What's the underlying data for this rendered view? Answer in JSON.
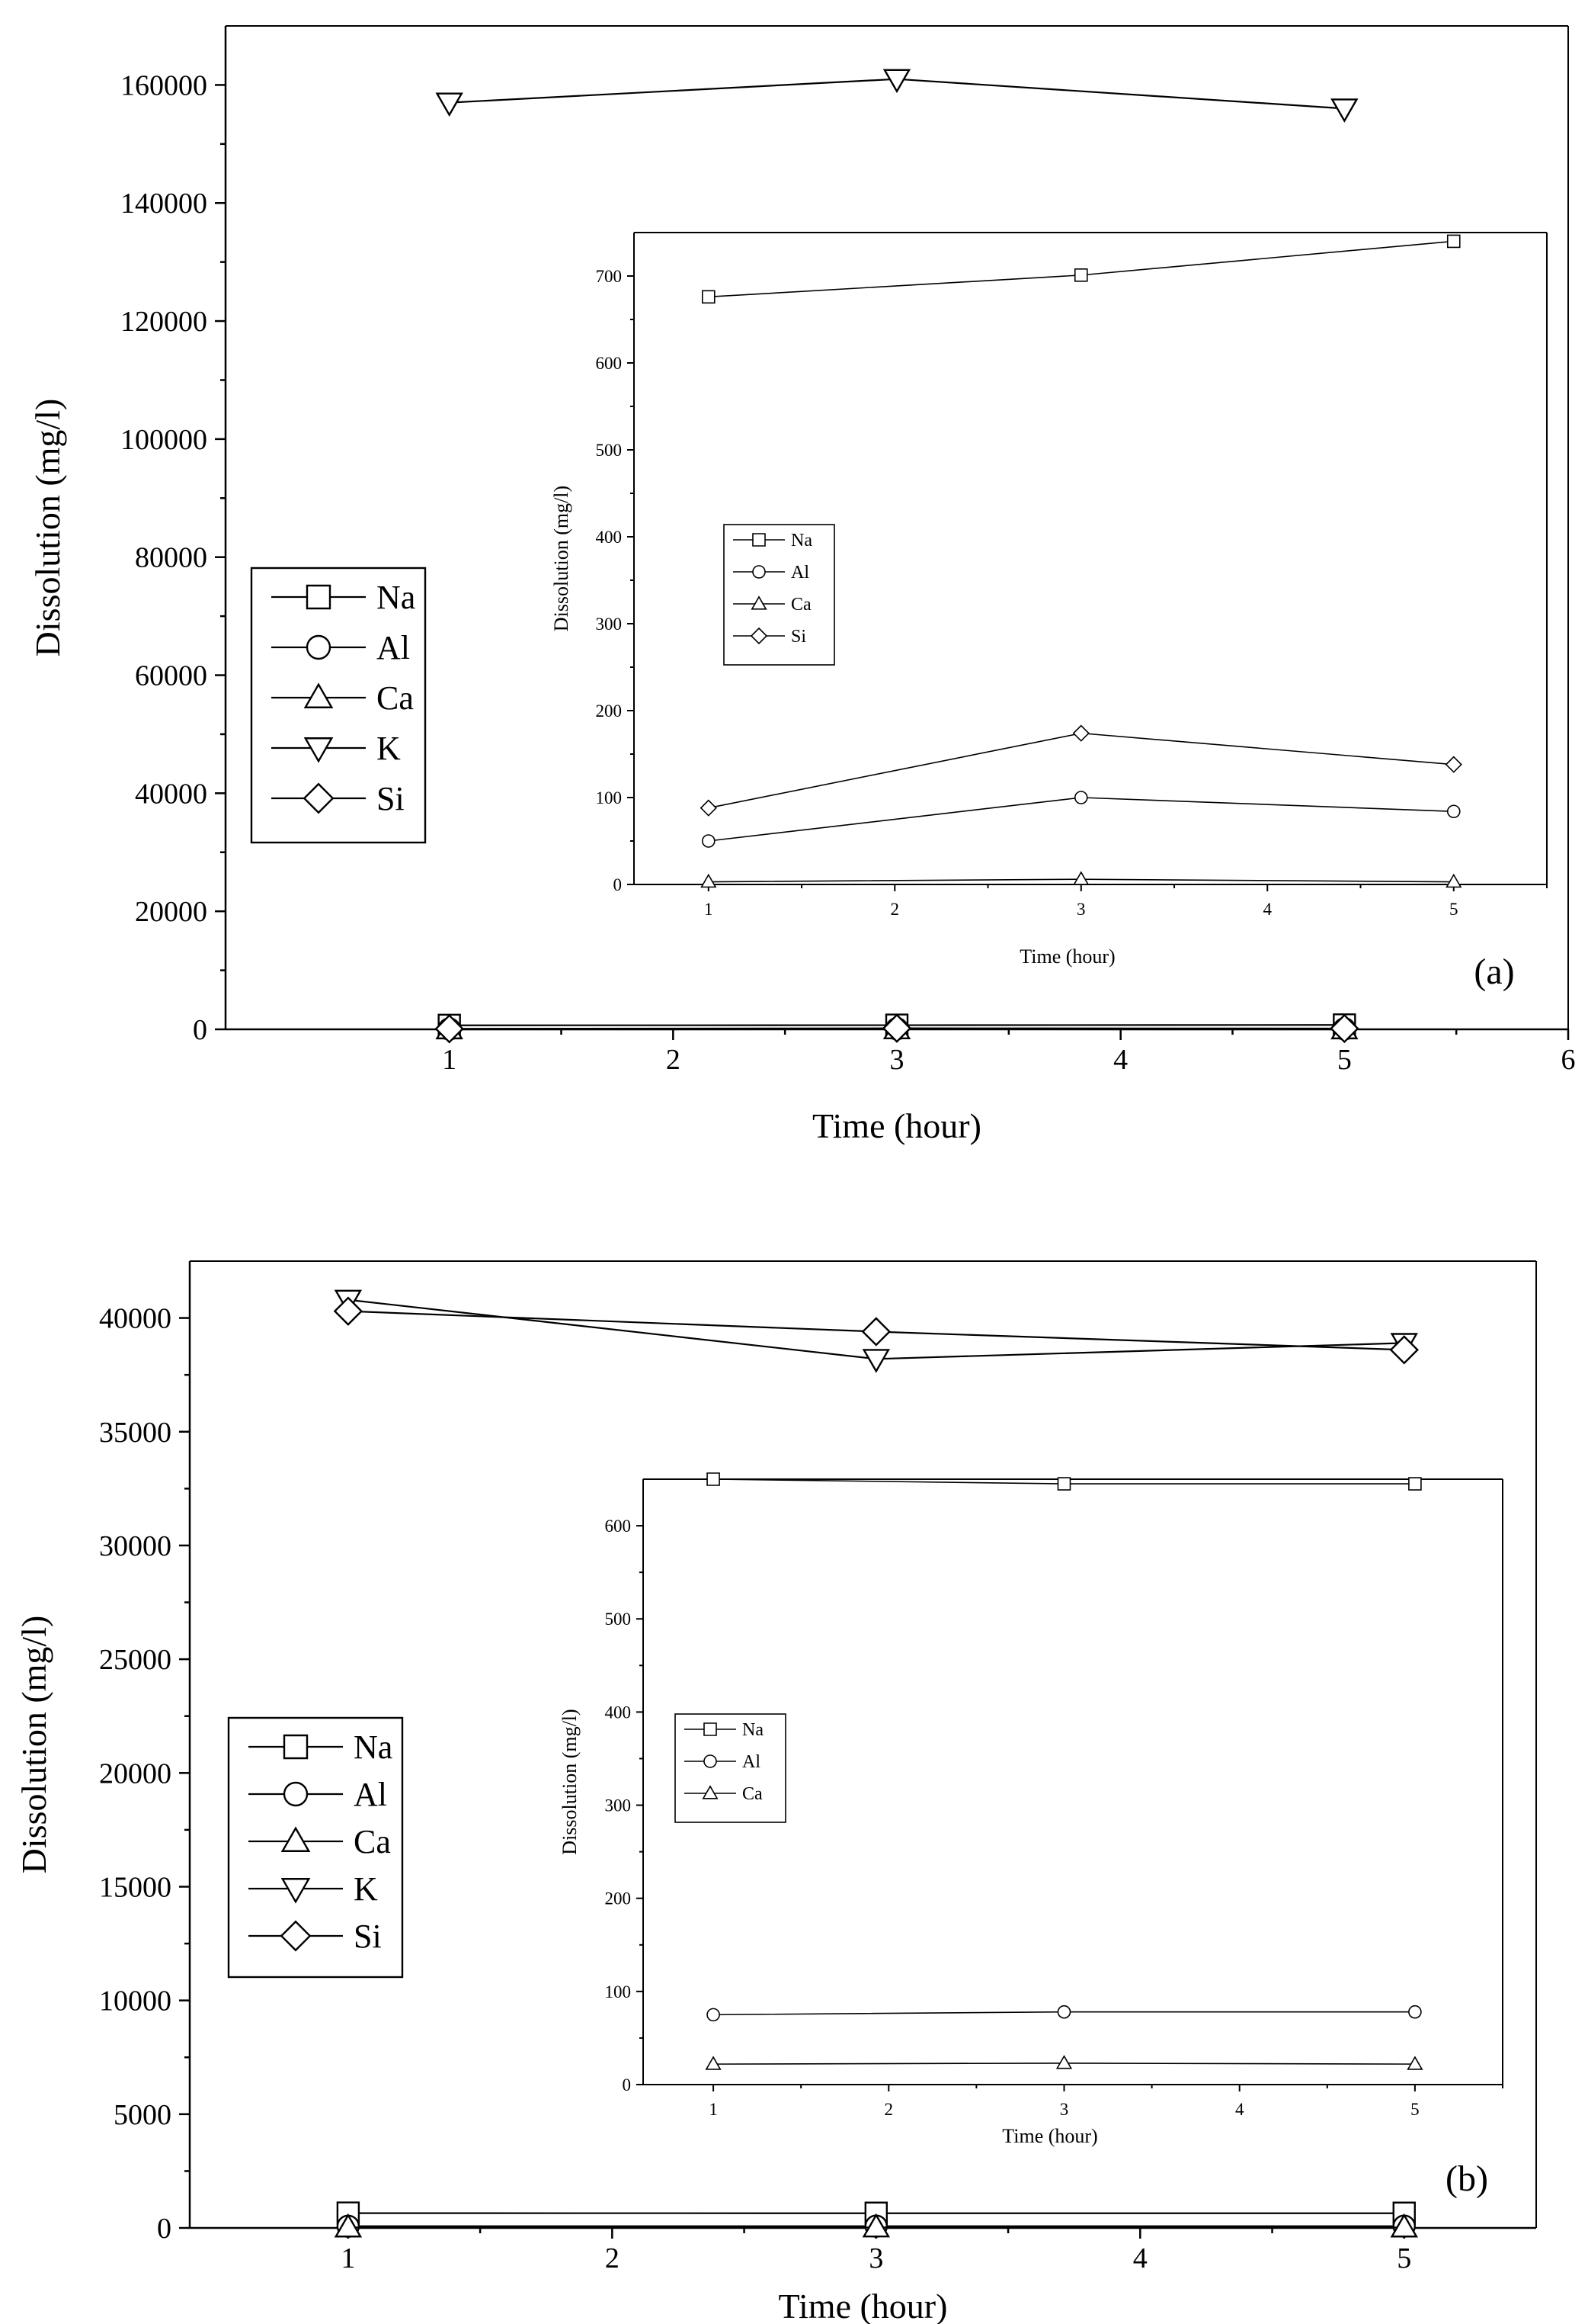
{
  "chart_data": [
    {
      "type": "line",
      "panel_label": "(a)",
      "xlabel": "Time (hour)",
      "ylabel": "Dissolution (mg/l)",
      "xlim": [
        0,
        6
      ],
      "ylim": [
        0,
        170000
      ],
      "xticks": [
        1,
        2,
        3,
        4,
        5,
        6
      ],
      "yticks": [
        0,
        20000,
        40000,
        60000,
        80000,
        100000,
        120000,
        140000,
        160000
      ],
      "grid": false,
      "legend_position": "left",
      "x": [
        1,
        3,
        5
      ],
      "series": [
        {
          "name": "Na",
          "marker": "square",
          "values": [
            676,
            701,
            740
          ]
        },
        {
          "name": "Al",
          "marker": "circle",
          "values": [
            50,
            100,
            84
          ]
        },
        {
          "name": "Ca",
          "marker": "triangle-up",
          "values": [
            3,
            6,
            3
          ]
        },
        {
          "name": "K",
          "marker": "triangle-down",
          "values": [
            157000,
            161000,
            156000
          ]
        },
        {
          "name": "Si",
          "marker": "diamond",
          "values": [
            88,
            174,
            138
          ]
        }
      ],
      "inset": {
        "type": "line",
        "xlabel": "Time (hour)",
        "ylabel": "Dissolution (mg/l)",
        "xlim": [
          0.6,
          5.5
        ],
        "ylim": [
          0,
          750
        ],
        "xticks": [
          1,
          2,
          3,
          4,
          5
        ],
        "yticks": [
          0,
          100,
          200,
          300,
          400,
          500,
          600,
          700
        ],
        "legend_position": "left-middle",
        "x": [
          1,
          3,
          5
        ],
        "series": [
          {
            "name": "Na",
            "marker": "square",
            "values": [
              676,
              701,
              740
            ]
          },
          {
            "name": "Al",
            "marker": "circle",
            "values": [
              50,
              100,
              84
            ]
          },
          {
            "name": "Ca",
            "marker": "triangle-up",
            "values": [
              3,
              6,
              3
            ]
          },
          {
            "name": "Si",
            "marker": "diamond",
            "values": [
              88,
              174,
              138
            ]
          }
        ]
      }
    },
    {
      "type": "line",
      "panel_label": "(b)",
      "xlabel": "Time (hour)",
      "ylabel": "Dissolution (mg/l)",
      "xlim": [
        0.4,
        5.5
      ],
      "ylim": [
        0,
        42500
      ],
      "xticks": [
        1,
        2,
        3,
        4,
        5
      ],
      "yticks": [
        0,
        5000,
        10000,
        15000,
        20000,
        25000,
        30000,
        35000,
        40000
      ],
      "grid": false,
      "legend_position": "left",
      "x": [
        1,
        3,
        5
      ],
      "series": [
        {
          "name": "Na",
          "marker": "square",
          "values": [
            650,
            645,
            645
          ]
        },
        {
          "name": "Al",
          "marker": "circle",
          "values": [
            75,
            78,
            78
          ]
        },
        {
          "name": "Ca",
          "marker": "triangle-up",
          "values": [
            22,
            23,
            22
          ]
        },
        {
          "name": "K",
          "marker": "triangle-down",
          "values": [
            40800,
            38200,
            38900
          ]
        },
        {
          "name": "Si",
          "marker": "diamond",
          "values": [
            40300,
            39400,
            38600
          ]
        }
      ],
      "inset": {
        "type": "line",
        "xlabel": "Time (hour)",
        "ylabel": "Dissolution (mg/l)",
        "xlim": [
          0.6,
          5.5
        ],
        "ylim": [
          0,
          650
        ],
        "xticks": [
          1,
          2,
          3,
          4,
          5
        ],
        "yticks": [
          0,
          100,
          200,
          300,
          400,
          500,
          600
        ],
        "legend_position": "left-middle",
        "x": [
          1,
          3,
          5
        ],
        "series": [
          {
            "name": "Na",
            "marker": "square",
            "values": [
              650,
              645,
              645
            ]
          },
          {
            "name": "Al",
            "marker": "circle",
            "values": [
              75,
              78,
              78
            ]
          },
          {
            "name": "Ca",
            "marker": "triangle-up",
            "values": [
              22,
              23,
              22
            ]
          }
        ]
      }
    }
  ]
}
